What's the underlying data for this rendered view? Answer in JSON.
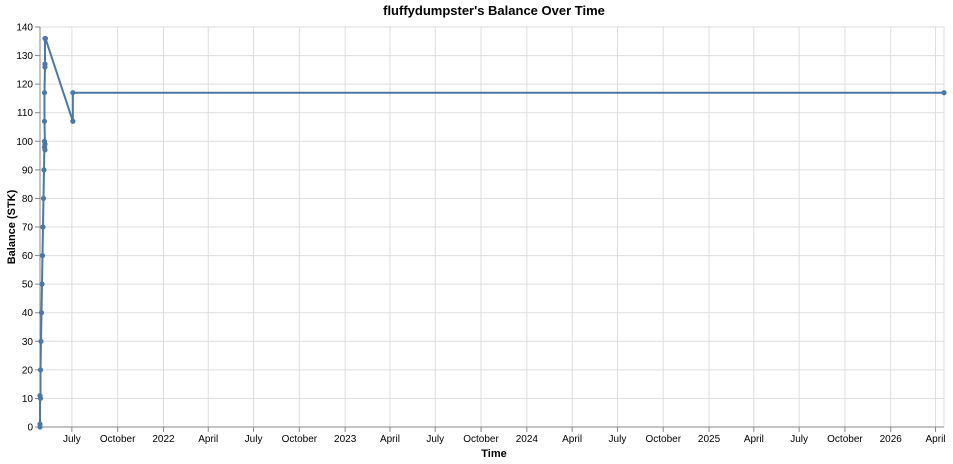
{
  "chart_data": {
    "type": "line",
    "title": "fluffydumpster's Balance Over Time",
    "xlabel": "Time",
    "ylabel": "Balance (STK)",
    "ylim": [
      0,
      140
    ],
    "yticks": [
      0,
      10,
      20,
      30,
      40,
      50,
      60,
      70,
      80,
      90,
      100,
      110,
      120,
      130,
      140
    ],
    "xlim": [
      "2021-04-28",
      "2026-04-18"
    ],
    "xticks": [
      {
        "date": "2021-07-01",
        "label": "July"
      },
      {
        "date": "2021-10-01",
        "label": "October"
      },
      {
        "date": "2022-01-01",
        "label": "2022"
      },
      {
        "date": "2022-04-01",
        "label": "April"
      },
      {
        "date": "2022-07-01",
        "label": "July"
      },
      {
        "date": "2022-10-01",
        "label": "October"
      },
      {
        "date": "2023-01-01",
        "label": "2023"
      },
      {
        "date": "2023-04-01",
        "label": "April"
      },
      {
        "date": "2023-07-01",
        "label": "July"
      },
      {
        "date": "2023-10-01",
        "label": "October"
      },
      {
        "date": "2024-01-01",
        "label": "2024"
      },
      {
        "date": "2024-04-01",
        "label": "April"
      },
      {
        "date": "2024-07-01",
        "label": "July"
      },
      {
        "date": "2024-10-01",
        "label": "October"
      },
      {
        "date": "2025-01-01",
        "label": "2025"
      },
      {
        "date": "2025-04-01",
        "label": "April"
      },
      {
        "date": "2025-07-01",
        "label": "July"
      },
      {
        "date": "2025-10-01",
        "label": "October"
      },
      {
        "date": "2026-01-01",
        "label": "2026"
      },
      {
        "date": "2026-04-01",
        "label": "April"
      }
    ],
    "grid": true,
    "color": "#4c78a8",
    "series": [
      {
        "points": [
          {
            "x": "2021-04-28",
            "y": 0
          },
          {
            "x": "2021-04-28",
            "y": 1
          },
          {
            "x": "2021-04-28",
            "y": 11
          },
          {
            "x": "2021-04-29",
            "y": 10
          },
          {
            "x": "2021-04-29",
            "y": 20
          },
          {
            "x": "2021-04-30",
            "y": 30
          },
          {
            "x": "2021-05-01",
            "y": 40
          },
          {
            "x": "2021-05-02",
            "y": 50
          },
          {
            "x": "2021-05-03",
            "y": 60
          },
          {
            "x": "2021-05-04",
            "y": 70
          },
          {
            "x": "2021-05-05",
            "y": 80
          },
          {
            "x": "2021-05-06",
            "y": 90
          },
          {
            "x": "2021-05-07",
            "y": 100
          },
          {
            "x": "2021-05-07",
            "y": 98
          },
          {
            "x": "2021-05-08",
            "y": 97
          },
          {
            "x": "2021-05-08",
            "y": 99
          },
          {
            "x": "2021-05-07",
            "y": 107
          },
          {
            "x": "2021-05-07",
            "y": 117
          },
          {
            "x": "2021-05-08",
            "y": 126
          },
          {
            "x": "2021-05-08",
            "y": 127
          },
          {
            "x": "2021-05-08",
            "y": 136
          },
          {
            "x": "2021-05-09",
            "y": 136
          },
          {
            "x": "2021-07-03",
            "y": 107
          },
          {
            "x": "2021-07-03",
            "y": 117
          },
          {
            "x": "2026-04-18",
            "y": 117
          }
        ]
      }
    ]
  }
}
